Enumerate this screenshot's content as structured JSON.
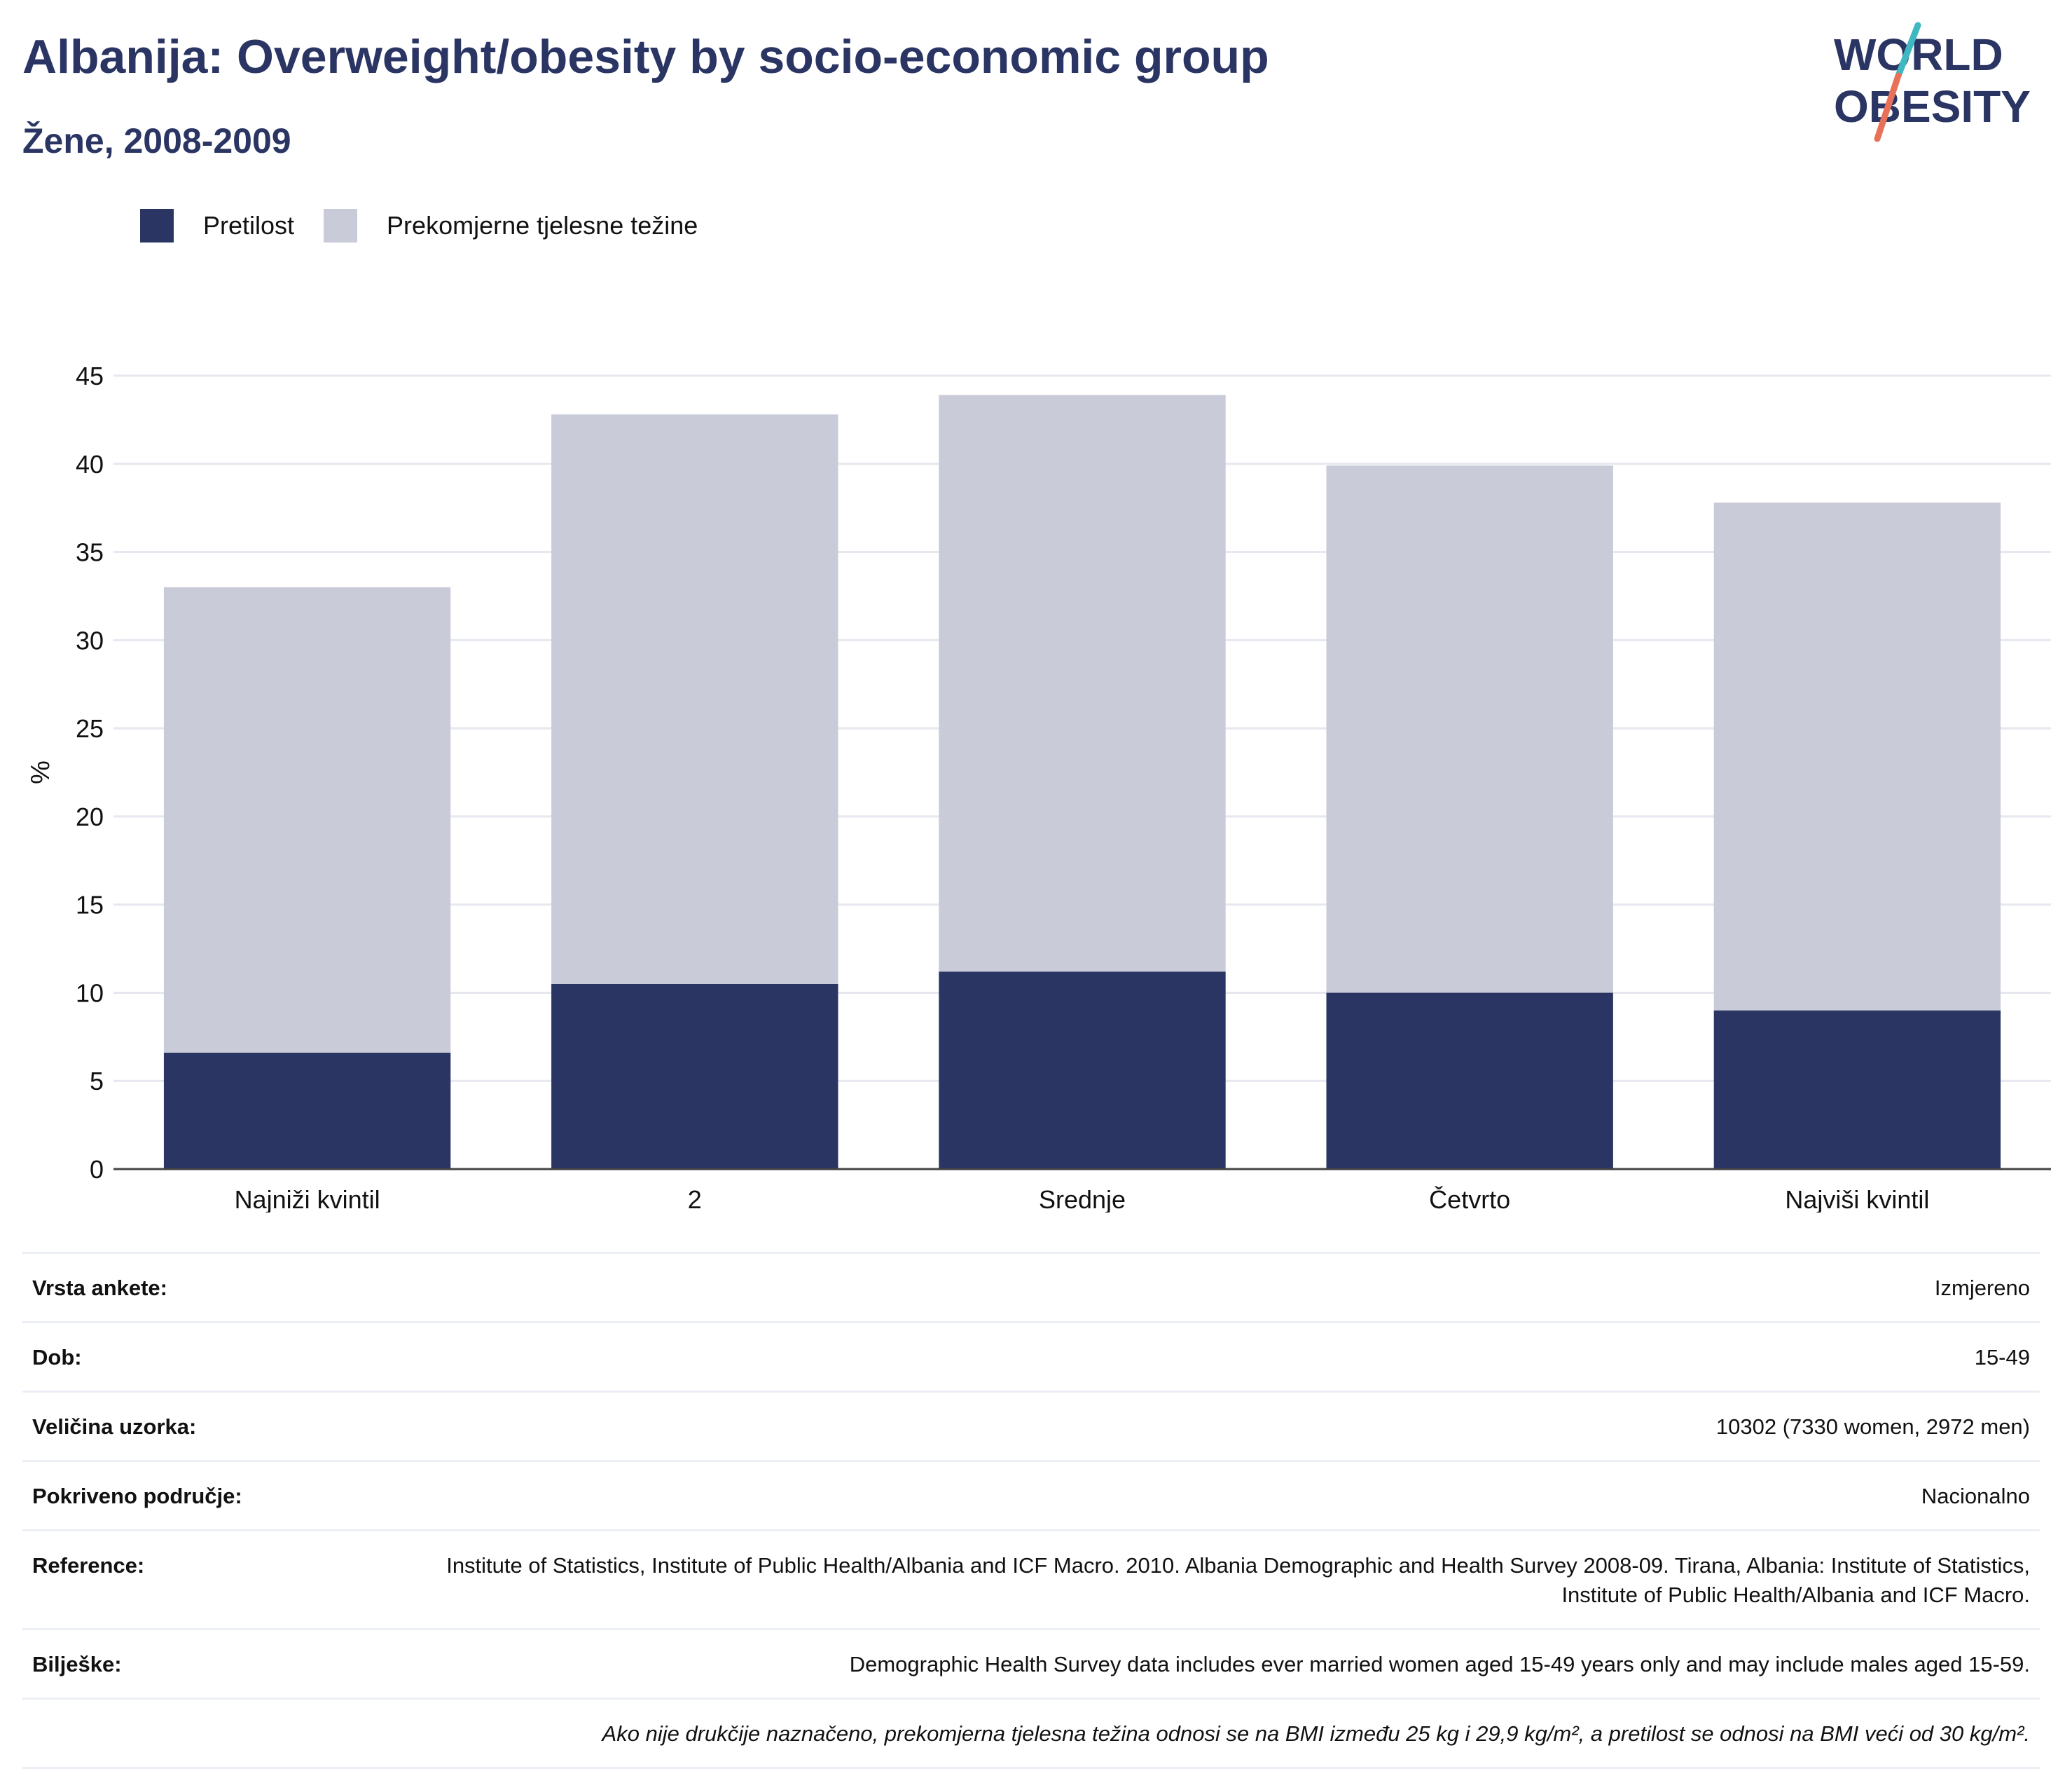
{
  "title": "Albanija: Overweight/obesity by socio-economic group",
  "subtitle": "Žene, 2008-2009",
  "logo": {
    "line1": "WORLD",
    "line2": "OBESITY",
    "slash_colors": [
      "#3fb8c2",
      "#e8715a"
    ]
  },
  "legend": [
    {
      "label": "Pretilost",
      "color": "#2a3563"
    },
    {
      "label": "Prekomjerne tjelesne težine",
      "color": "#c9ccd8"
    }
  ],
  "chart_data": {
    "type": "bar",
    "stacked": true,
    "categories": [
      "Najniži kvintil",
      "2",
      "Srednje",
      "Četvrto",
      "Najviši kvintil"
    ],
    "series": [
      {
        "name": "Pretilost",
        "color": "#2a3563",
        "values": [
          6.6,
          10.5,
          11.2,
          10.0,
          9.0
        ]
      },
      {
        "name": "Prekomjerne tjelesne težine",
        "color": "#c9ccd8",
        "values": [
          26.4,
          32.3,
          32.7,
          29.9,
          28.8
        ]
      }
    ],
    "ylabel": "%",
    "ylim": [
      0,
      45
    ],
    "yticks": [
      0,
      5,
      10,
      15,
      20,
      25,
      30,
      35,
      40,
      45
    ],
    "grid": true
  },
  "meta": [
    {
      "label": "Vrsta ankete:",
      "value": "Izmjereno"
    },
    {
      "label": "Dob:",
      "value": "15-49"
    },
    {
      "label": "Veličina uzorka:",
      "value": "10302 (7330 women, 2972 men)"
    },
    {
      "label": "Pokriveno područje:",
      "value": "Nacionalno"
    },
    {
      "label": "Reference:",
      "value": "Institute of Statistics, Institute of Public Health/Albania and ICF Macro. 2010. Albania Demographic and Health Survey 2008-09. Tirana, Albania: Institute of Statistics, Institute of Public Health/Albania and ICF Macro."
    },
    {
      "label": "Bilješke:",
      "value": "Demographic Health Survey data includes ever married women aged 15-49 years only and may include males aged 15-59."
    }
  ],
  "footnote": "Ako nije drukčije naznačeno, prekomjerna tjelesna težina odnosi se na BMI između 25 kg i 29,9 kg/m², a pretilost se odnosi na BMI veći od 30 kg/m²."
}
